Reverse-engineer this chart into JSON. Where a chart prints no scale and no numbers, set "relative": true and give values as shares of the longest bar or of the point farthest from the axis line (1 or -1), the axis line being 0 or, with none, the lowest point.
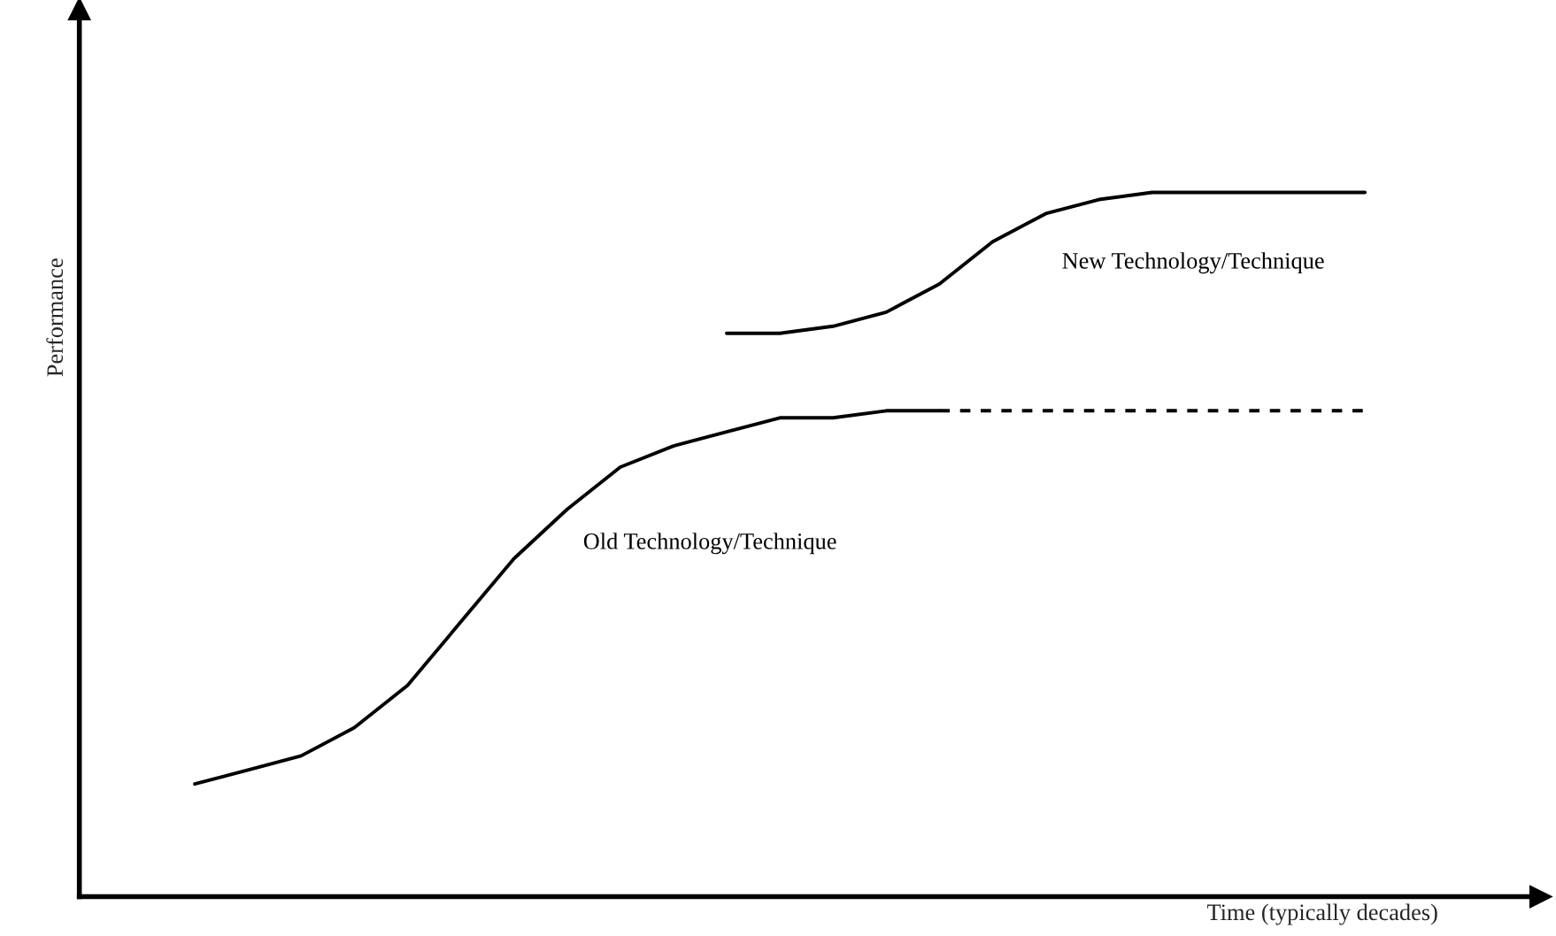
{
  "chart_data": {
    "type": "line",
    "relative": true,
    "xlabel": "Time (typically decades)",
    "ylabel": "Performance",
    "categories": [
      null,
      null,
      null,
      null,
      null,
      null,
      null,
      null,
      null,
      null,
      null,
      null,
      null,
      null,
      null,
      null,
      null,
      null,
      null,
      null,
      null,
      null,
      null
    ],
    "series": [
      {
        "name": "Old Technology/Technique",
        "color": "#000000",
        "line_style": "solid",
        "values": [
          0.16,
          0.18,
          0.2,
          0.24,
          0.3,
          0.39,
          0.48,
          0.55,
          0.61,
          0.64,
          0.66,
          0.68,
          0.68,
          0.69,
          0.69,
          null,
          null,
          null,
          null,
          null,
          null,
          null,
          null
        ]
      },
      {
        "color": "#000000",
        "line_style": "dashed",
        "values": [
          null,
          null,
          null,
          null,
          null,
          null,
          null,
          null,
          null,
          null,
          null,
          null,
          null,
          null,
          0.69,
          0.69,
          0.69,
          0.69,
          0.69,
          0.69,
          0.69,
          0.69,
          0.69
        ]
      },
      {
        "name": "New Technology/Technique",
        "color": "#000000",
        "line_style": "solid",
        "values": [
          null,
          null,
          null,
          null,
          null,
          null,
          null,
          null,
          null,
          null,
          0.8,
          0.8,
          0.81,
          0.83,
          0.87,
          0.93,
          0.97,
          0.99,
          1.0,
          1.0,
          1.0,
          1.0,
          1.0
        ]
      }
    ]
  }
}
